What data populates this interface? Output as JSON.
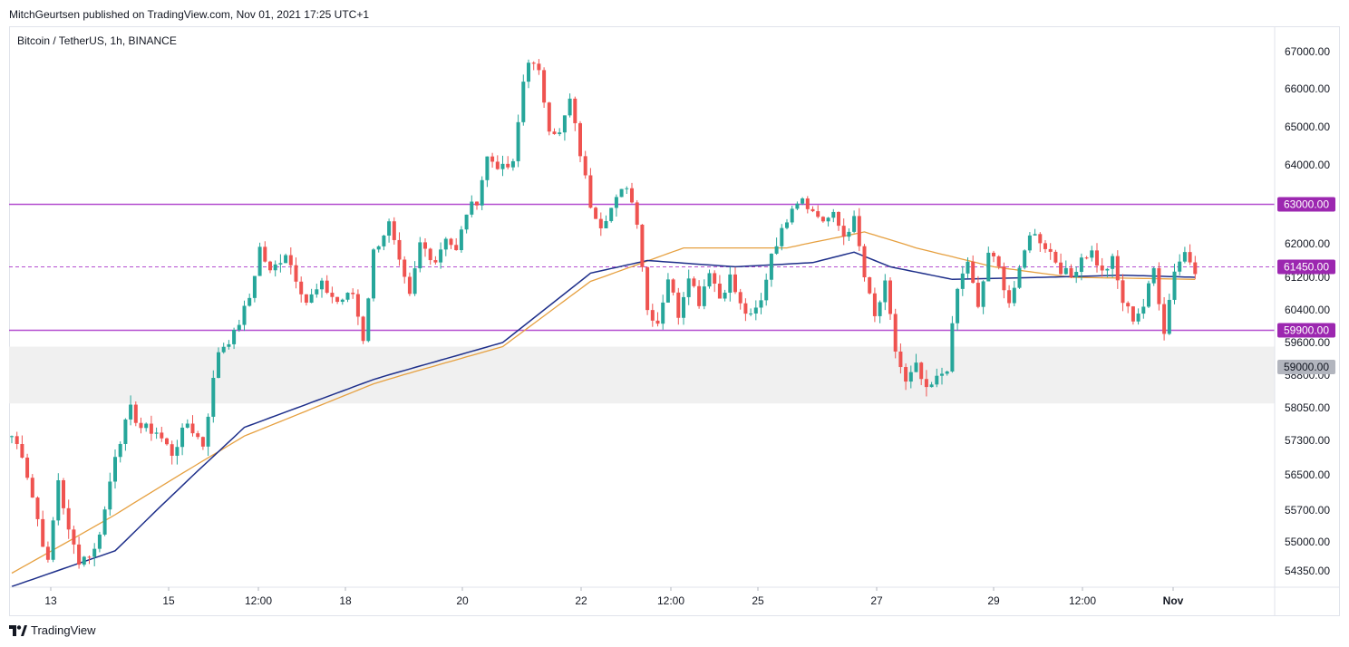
{
  "header": {
    "published_by": "MitchGeurtsen published on TradingView.com, Nov 01, 2021 17:25 UTC+1"
  },
  "symbol": {
    "title": "Bitcoin / TetherUS, 1h, BINANCE"
  },
  "footer": {
    "brand": "TradingView"
  },
  "colors": {
    "up": "#26a69a",
    "down": "#ef5350",
    "ma_fast": "#1e2f8a",
    "ma_slow": "#e6a040",
    "level_line": "#b44fd0",
    "zone_fill": "#f0f0f0",
    "grid_border": "#e0e3eb"
  },
  "chart_data": {
    "type": "candlestick",
    "title": "Bitcoin / TetherUS, 1h, BINANCE",
    "y_tick_labels": [
      "67000.00",
      "66000.00",
      "65000.00",
      "64000.00",
      "62000.00",
      "61200.00",
      "60400.00",
      "59600.00",
      "58800.00",
      "58050.00",
      "57300.00",
      "56500.00",
      "55700.00",
      "55000.00",
      "54350.00"
    ],
    "x_tick_labels": [
      "13",
      "15",
      "12:00",
      "18",
      "20",
      "22",
      "12:00",
      "25",
      "27",
      "29",
      "12:00",
      "Nov"
    ],
    "price_labels": [
      {
        "value": "63000.00",
        "kind": "level"
      },
      {
        "value": "61450.00",
        "kind": "last-price"
      },
      {
        "value": "59900.00",
        "kind": "level"
      },
      {
        "value": "59000.00",
        "kind": "zone"
      }
    ],
    "horizontal_levels": [
      63000,
      59900
    ],
    "dashed_level": 61450,
    "support_zone": [
      58150,
      59500
    ],
    "price_anchors": [
      [
        0,
        57400
      ],
      [
        2,
        57000
      ],
      [
        5,
        55500
      ],
      [
        7,
        54500
      ],
      [
        9,
        56400
      ],
      [
        11,
        55200
      ],
      [
        13,
        54600
      ],
      [
        16,
        54800
      ],
      [
        18,
        55700
      ],
      [
        20,
        57000
      ],
      [
        23,
        58000
      ],
      [
        25,
        57600
      ],
      [
        28,
        57500
      ],
      [
        31,
        57000
      ],
      [
        34,
        57700
      ],
      [
        37,
        57200
      ],
      [
        40,
        59400
      ],
      [
        43,
        59800
      ],
      [
        46,
        60700
      ],
      [
        48,
        61900
      ],
      [
        50,
        61300
      ],
      [
        53,
        61800
      ],
      [
        55,
        61200
      ],
      [
        57,
        60600
      ],
      [
        60,
        61000
      ],
      [
        63,
        60600
      ],
      [
        66,
        60800
      ],
      [
        68,
        59700
      ],
      [
        70,
        61800
      ],
      [
        73,
        62500
      ],
      [
        75,
        61500
      ],
      [
        77,
        60700
      ],
      [
        79,
        62000
      ],
      [
        82,
        61600
      ],
      [
        84,
        62200
      ],
      [
        86,
        61800
      ],
      [
        88,
        62800
      ],
      [
        90,
        63100
      ],
      [
        92,
        64200
      ],
      [
        95,
        63900
      ],
      [
        97,
        64000
      ],
      [
        99,
        66200
      ],
      [
        100,
        66800
      ],
      [
        102,
        66400
      ],
      [
        104,
        65000
      ],
      [
        106,
        64800
      ],
      [
        108,
        65700
      ],
      [
        110,
        64300
      ],
      [
        112,
        63000
      ],
      [
        114,
        62500
      ],
      [
        116,
        62900
      ],
      [
        119,
        63500
      ],
      [
        121,
        62600
      ],
      [
        123,
        60400
      ],
      [
        125,
        60100
      ],
      [
        127,
        61200
      ],
      [
        129,
        60300
      ],
      [
        131,
        61300
      ],
      [
        133,
        60600
      ],
      [
        135,
        61400
      ],
      [
        137,
        60700
      ],
      [
        139,
        61200
      ],
      [
        141,
        60500
      ],
      [
        143,
        60200
      ],
      [
        145,
        60600
      ],
      [
        147,
        61800
      ],
      [
        149,
        62300
      ],
      [
        151,
        63000
      ],
      [
        153,
        63200
      ],
      [
        155,
        62800
      ],
      [
        157,
        62600
      ],
      [
        159,
        62700
      ],
      [
        161,
        62200
      ],
      [
        163,
        62600
      ],
      [
        165,
        61200
      ],
      [
        167,
        60200
      ],
      [
        169,
        61000
      ],
      [
        171,
        59400
      ],
      [
        173,
        58600
      ],
      [
        175,
        59000
      ],
      [
        177,
        58400
      ],
      [
        179,
        58700
      ],
      [
        181,
        59000
      ],
      [
        183,
        60900
      ],
      [
        185,
        61600
      ],
      [
        187,
        60400
      ],
      [
        189,
        61800
      ],
      [
        191,
        61400
      ],
      [
        193,
        60600
      ],
      [
        195,
        61300
      ],
      [
        197,
        62300
      ],
      [
        199,
        62100
      ],
      [
        201,
        61800
      ],
      [
        203,
        61400
      ],
      [
        205,
        61200
      ],
      [
        207,
        61700
      ],
      [
        209,
        61800
      ],
      [
        211,
        61300
      ],
      [
        213,
        61600
      ],
      [
        215,
        60600
      ],
      [
        217,
        60200
      ],
      [
        219,
        60500
      ],
      [
        221,
        61400
      ],
      [
        223,
        59900
      ],
      [
        225,
        61400
      ],
      [
        227,
        61800
      ],
      [
        229,
        61400
      ]
    ],
    "ma_fast_anchors": [
      [
        0,
        54000
      ],
      [
        20,
        54800
      ],
      [
        45,
        57600
      ],
      [
        70,
        58700
      ],
      [
        95,
        59600
      ],
      [
        112,
        61300
      ],
      [
        123,
        61600
      ],
      [
        140,
        61450
      ],
      [
        155,
        61550
      ],
      [
        163,
        61800
      ],
      [
        170,
        61450
      ],
      [
        182,
        61150
      ],
      [
        200,
        61200
      ],
      [
        215,
        61250
      ],
      [
        229,
        61200
      ]
    ],
    "ma_slow_anchors": [
      [
        0,
        54300
      ],
      [
        20,
        55600
      ],
      [
        45,
        57400
      ],
      [
        70,
        58600
      ],
      [
        95,
        59500
      ],
      [
        112,
        61100
      ],
      [
        130,
        61900
      ],
      [
        150,
        61900
      ],
      [
        165,
        62300
      ],
      [
        175,
        61900
      ],
      [
        190,
        61450
      ],
      [
        205,
        61200
      ],
      [
        229,
        61150
      ]
    ]
  }
}
